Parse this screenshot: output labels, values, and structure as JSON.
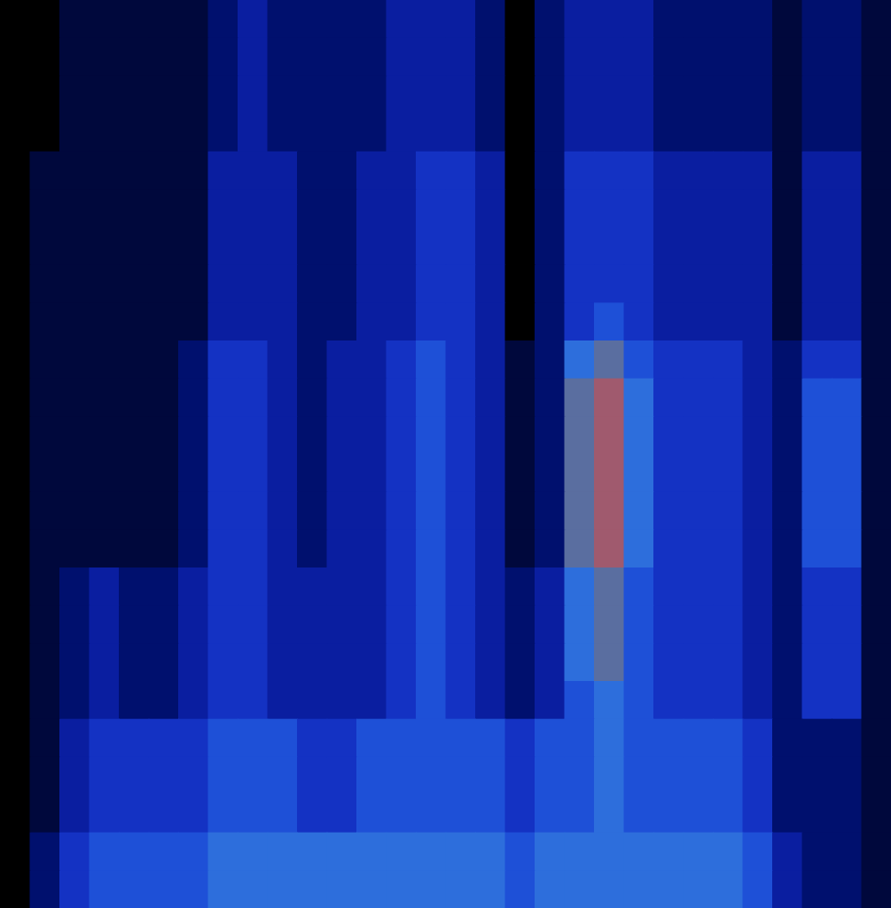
{
  "chart_data": {
    "type": "heatmap",
    "tick_labels": false,
    "zlim": [
      0,
      9
    ],
    "cells": [
      [
        0,
        0,
        1,
        1,
        1,
        1,
        1,
        2,
        3,
        2,
        2,
        2,
        2,
        3,
        3,
        3,
        2,
        0,
        2,
        3,
        3,
        3,
        2,
        2,
        2,
        2,
        1,
        2,
        2,
        1
      ],
      [
        0,
        0,
        1,
        1,
        1,
        1,
        1,
        2,
        3,
        2,
        2,
        2,
        2,
        3,
        3,
        3,
        2,
        0,
        2,
        3,
        3,
        3,
        2,
        2,
        2,
        2,
        1,
        2,
        2,
        1
      ],
      [
        0,
        0,
        1,
        1,
        1,
        1,
        1,
        2,
        3,
        2,
        2,
        2,
        2,
        3,
        3,
        3,
        2,
        0,
        2,
        3,
        3,
        3,
        2,
        2,
        2,
        2,
        1,
        2,
        2,
        1
      ],
      [
        0,
        0,
        1,
        1,
        1,
        1,
        1,
        2,
        3,
        2,
        2,
        2,
        2,
        3,
        3,
        3,
        2,
        0,
        2,
        3,
        3,
        3,
        2,
        2,
        2,
        2,
        1,
        2,
        2,
        1
      ],
      [
        0,
        1,
        1,
        1,
        1,
        1,
        1,
        3,
        3,
        3,
        2,
        2,
        3,
        3,
        4,
        4,
        3,
        0,
        2,
        4,
        4,
        4,
        3,
        3,
        3,
        3,
        1,
        3,
        3,
        1
      ],
      [
        0,
        1,
        1,
        1,
        1,
        1,
        1,
        3,
        3,
        3,
        2,
        2,
        3,
        3,
        4,
        4,
        3,
        0,
        2,
        4,
        4,
        4,
        3,
        3,
        3,
        3,
        1,
        3,
        3,
        1
      ],
      [
        0,
        1,
        1,
        1,
        1,
        1,
        1,
        3,
        3,
        3,
        2,
        2,
        3,
        3,
        4,
        4,
        3,
        0,
        2,
        4,
        4,
        4,
        3,
        3,
        3,
        3,
        1,
        3,
        3,
        1
      ],
      [
        0,
        1,
        1,
        1,
        1,
        1,
        1,
        3,
        3,
        3,
        2,
        2,
        3,
        3,
        4,
        4,
        3,
        0,
        2,
        4,
        4,
        4,
        3,
        3,
        3,
        3,
        1,
        3,
        3,
        1
      ],
      [
        0,
        1,
        1,
        1,
        1,
        1,
        1,
        3,
        3,
        3,
        2,
        2,
        3,
        3,
        4,
        4,
        3,
        0,
        2,
        4,
        5,
        4,
        3,
        3,
        3,
        3,
        1,
        3,
        3,
        1
      ],
      [
        0,
        1,
        1,
        1,
        1,
        1,
        2,
        4,
        4,
        3,
        2,
        3,
        3,
        4,
        5,
        4,
        3,
        1,
        2,
        6,
        7,
        5,
        4,
        4,
        4,
        3,
        2,
        4,
        4,
        1
      ],
      [
        0,
        1,
        1,
        1,
        1,
        1,
        2,
        4,
        4,
        3,
        2,
        3,
        3,
        4,
        5,
        4,
        3,
        1,
        2,
        7,
        8,
        6,
        4,
        4,
        4,
        3,
        2,
        5,
        5,
        1
      ],
      [
        0,
        1,
        1,
        1,
        1,
        1,
        2,
        4,
        4,
        3,
        2,
        3,
        3,
        4,
        5,
        4,
        3,
        1,
        2,
        7,
        8,
        6,
        4,
        4,
        4,
        3,
        2,
        5,
        5,
        1
      ],
      [
        0,
        1,
        1,
        1,
        1,
        1,
        2,
        4,
        4,
        3,
        2,
        3,
        3,
        4,
        5,
        4,
        3,
        1,
        2,
        7,
        8,
        6,
        4,
        4,
        4,
        3,
        2,
        5,
        5,
        1
      ],
      [
        0,
        1,
        1,
        1,
        1,
        1,
        2,
        4,
        4,
        3,
        2,
        3,
        3,
        4,
        5,
        4,
        3,
        1,
        2,
        7,
        8,
        6,
        4,
        4,
        4,
        3,
        2,
        5,
        5,
        1
      ],
      [
        0,
        1,
        1,
        1,
        1,
        1,
        2,
        4,
        4,
        3,
        2,
        3,
        3,
        4,
        5,
        4,
        3,
        1,
        2,
        7,
        8,
        6,
        4,
        4,
        4,
        3,
        2,
        5,
        5,
        1
      ],
      [
        0,
        1,
        2,
        3,
        2,
        2,
        3,
        4,
        4,
        3,
        3,
        3,
        3,
        4,
        5,
        4,
        3,
        2,
        3,
        6,
        7,
        5,
        4,
        4,
        4,
        3,
        2,
        4,
        4,
        1
      ],
      [
        0,
        1,
        2,
        3,
        2,
        2,
        3,
        4,
        4,
        3,
        3,
        3,
        3,
        4,
        5,
        4,
        3,
        2,
        3,
        6,
        7,
        5,
        4,
        4,
        4,
        3,
        2,
        4,
        4,
        1
      ],
      [
        0,
        1,
        2,
        3,
        2,
        2,
        3,
        4,
        4,
        3,
        3,
        3,
        3,
        4,
        5,
        4,
        3,
        2,
        3,
        6,
        7,
        5,
        4,
        4,
        4,
        3,
        2,
        4,
        4,
        1
      ],
      [
        0,
        1,
        2,
        3,
        2,
        2,
        3,
        4,
        4,
        3,
        3,
        3,
        3,
        4,
        5,
        4,
        3,
        2,
        3,
        5,
        6,
        5,
        4,
        4,
        4,
        3,
        2,
        4,
        4,
        1
      ],
      [
        0,
        1,
        3,
        4,
        4,
        4,
        4,
        5,
        5,
        5,
        4,
        4,
        5,
        5,
        5,
        5,
        5,
        4,
        5,
        5,
        6,
        5,
        5,
        5,
        5,
        4,
        2,
        2,
        2,
        1
      ],
      [
        0,
        1,
        3,
        4,
        4,
        4,
        4,
        5,
        5,
        5,
        4,
        4,
        5,
        5,
        5,
        5,
        5,
        4,
        5,
        5,
        6,
        5,
        5,
        5,
        5,
        4,
        2,
        2,
        2,
        1
      ],
      [
        0,
        1,
        3,
        4,
        4,
        4,
        4,
        5,
        5,
        5,
        4,
        4,
        5,
        5,
        5,
        5,
        5,
        4,
        5,
        5,
        6,
        5,
        5,
        5,
        5,
        4,
        2,
        2,
        2,
        1
      ],
      [
        0,
        2,
        4,
        5,
        5,
        5,
        5,
        6,
        6,
        6,
        6,
        6,
        6,
        6,
        6,
        6,
        6,
        5,
        6,
        6,
        6,
        6,
        6,
        6,
        6,
        5,
        3,
        2,
        2,
        1
      ],
      [
        0,
        2,
        4,
        5,
        5,
        5,
        5,
        6,
        6,
        6,
        6,
        6,
        6,
        6,
        6,
        6,
        6,
        5,
        6,
        6,
        6,
        6,
        6,
        6,
        6,
        5,
        3,
        2,
        2,
        1
      ]
    ]
  }
}
